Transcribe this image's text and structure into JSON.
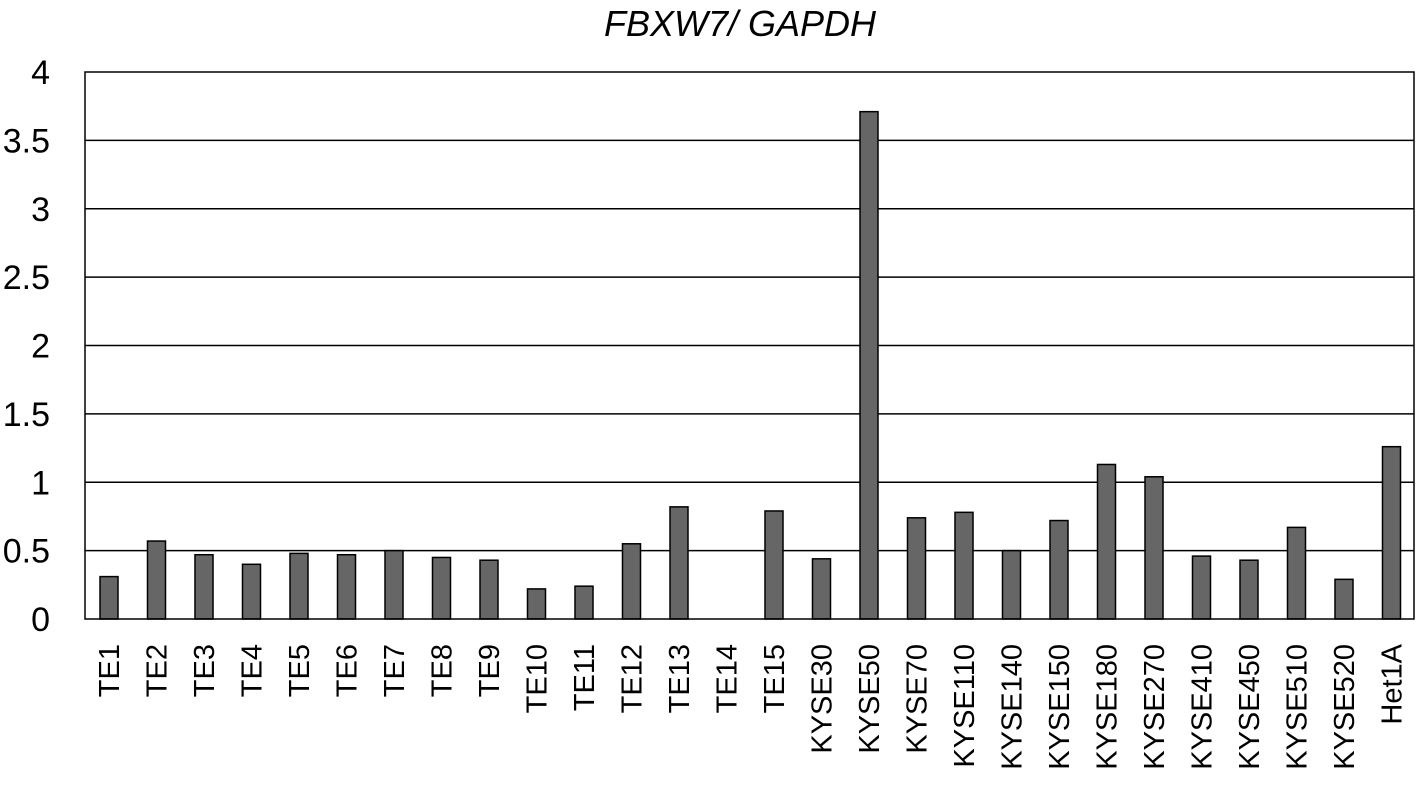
{
  "chart_data": {
    "type": "bar",
    "title": "FBXW7/ GAPDH",
    "xlabel": "",
    "ylabel": "",
    "ylim": [
      0,
      4
    ],
    "yticks": [
      "0",
      "0.5",
      "1",
      "1.5",
      "2",
      "2.5",
      "3",
      "3.5",
      "4"
    ],
    "grid": true,
    "categories": [
      "TE1",
      "TE2",
      "TE3",
      "TE4",
      "TE5",
      "TE6",
      "TE7",
      "TE8",
      "TE9",
      "TE10",
      "TE11",
      "TE12",
      "TE13",
      "TE14",
      "TE15",
      "KYSE30",
      "KYSE50",
      "KYSE70",
      "KYSE110",
      "KYSE140",
      "KYSE150",
      "KYSE180",
      "KYSE270",
      "KYSE410",
      "KYSE450",
      "KYSE510",
      "KYSE520",
      "Het1A"
    ],
    "values": [
      0.31,
      0.57,
      0.47,
      0.4,
      0.48,
      0.47,
      0.5,
      0.45,
      0.43,
      0.22,
      0.24,
      0.55,
      0.82,
      0.0,
      0.79,
      0.44,
      3.71,
      0.74,
      0.78,
      0.5,
      0.72,
      1.13,
      1.04,
      0.46,
      0.43,
      0.67,
      0.29,
      1.26
    ],
    "bar_color": "#666666"
  }
}
